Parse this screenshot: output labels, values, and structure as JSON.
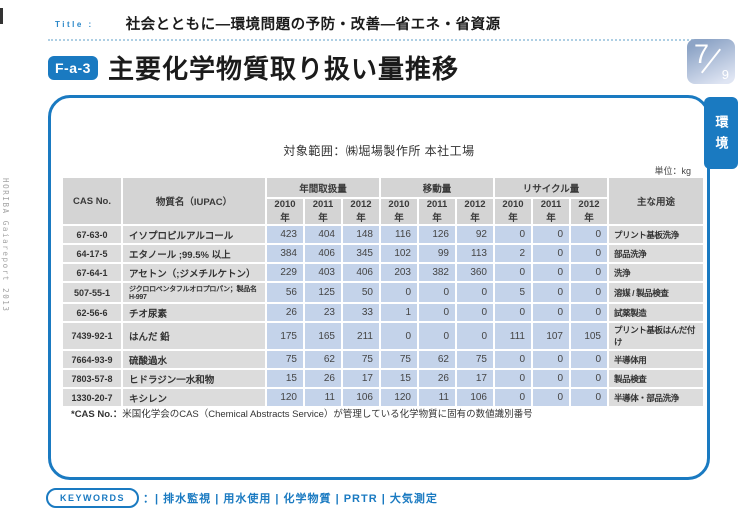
{
  "page": {
    "spine_text": "HORIBA Gaiareport 2013",
    "title_label": "Title :",
    "title_text": "社会とともに―環境問題の予防・改善―省エネ・省資源",
    "section_code": "F-a-3",
    "heading": "主要化学物質取り扱い量推移",
    "page_current": "7",
    "page_total": "9",
    "side_tab": "環境"
  },
  "panel": {
    "scope": "対象範囲：㈱堀場製作所 本社工場",
    "unit": "単位：kg",
    "footnote_label": "*CAS No.：",
    "footnote_text": "米国化学会のCAS（Chemical Abstracts Service）が管理している化学物質に固有の数値識別番号"
  },
  "table": {
    "headers": {
      "cas": "CAS No.",
      "name": "物質名（IUPAC）",
      "groups": [
        {
          "label": "年間取扱量",
          "years": [
            "2010 年",
            "2011 年",
            "2012 年"
          ]
        },
        {
          "label": "移動量",
          "years": [
            "2010 年",
            "2011 年",
            "2012 年"
          ]
        },
        {
          "label": "リサイクル量",
          "years": [
            "2010 年",
            "2011 年",
            "2012 年"
          ]
        }
      ],
      "usage": "主な用途"
    },
    "rows": [
      {
        "cas": "67-63-0",
        "name": "イソプロピルアルコール",
        "handling": [
          423,
          404,
          148
        ],
        "transfer": [
          116,
          126,
          92
        ],
        "recycle": [
          0,
          0,
          0
        ],
        "usage": "プリント基板洗浄"
      },
      {
        "cas": "64-17-5",
        "name": "エタノール ;99.5% 以上",
        "handling": [
          384,
          406,
          345
        ],
        "transfer": [
          102,
          99,
          113
        ],
        "recycle": [
          2,
          0,
          0
        ],
        "usage": "部品洗浄"
      },
      {
        "cas": "67-64-1",
        "name": "アセトン（;ジメチルケトン）",
        "handling": [
          229,
          403,
          406
        ],
        "transfer": [
          203,
          382,
          360
        ],
        "recycle": [
          0,
          0,
          0
        ],
        "usage": "洗浄"
      },
      {
        "cas": "507-55-1",
        "name": "ジクロロペンタフルオロプロパン；製品名 H-997",
        "handling": [
          56,
          125,
          50
        ],
        "transfer": [
          0,
          0,
          0
        ],
        "recycle": [
          5,
          0,
          0
        ],
        "usage": "溶媒 / 製品検査"
      },
      {
        "cas": "62-56-6",
        "name": "チオ尿素",
        "handling": [
          26,
          23,
          33
        ],
        "transfer": [
          1,
          0,
          0
        ],
        "recycle": [
          0,
          0,
          0
        ],
        "usage": "試薬製造"
      },
      {
        "cas": "7439-92-1",
        "name": "はんだ 鉛",
        "handling": [
          175,
          165,
          211
        ],
        "transfer": [
          0,
          0,
          0
        ],
        "recycle": [
          111,
          107,
          105
        ],
        "usage": "プリント基板はんだ付け"
      },
      {
        "cas": "7664-93-9",
        "name": "硫酸過水",
        "handling": [
          75,
          62,
          75
        ],
        "transfer": [
          75,
          62,
          75
        ],
        "recycle": [
          0,
          0,
          0
        ],
        "usage": "半導体用"
      },
      {
        "cas": "7803-57-8",
        "name": "ヒドラジン一水和物",
        "handling": [
          15,
          26,
          17
        ],
        "transfer": [
          15,
          26,
          17
        ],
        "recycle": [
          0,
          0,
          0
        ],
        "usage": "製品検査"
      },
      {
        "cas": "1330-20-7",
        "name": "キシレン",
        "handling": [
          120,
          11,
          106
        ],
        "transfer": [
          120,
          11,
          106
        ],
        "recycle": [
          0,
          0,
          0
        ],
        "usage": "半導体・部品洗浄"
      }
    ]
  },
  "keywords": {
    "label": "KEYWORDS",
    "lead": "：|",
    "items": [
      "排水監視",
      "用水使用",
      "化学物質",
      "PRTR",
      "大気測定"
    ]
  },
  "colors": {
    "accent_blue": "#1a7ac1",
    "header_gray": "#d4d4d4",
    "cell_blue": "#c4d3ea",
    "cell_gray": "#dcdcdc",
    "badge_gradient_top": "#8da4c6",
    "badge_gradient_bottom": "#dfe5f3"
  }
}
